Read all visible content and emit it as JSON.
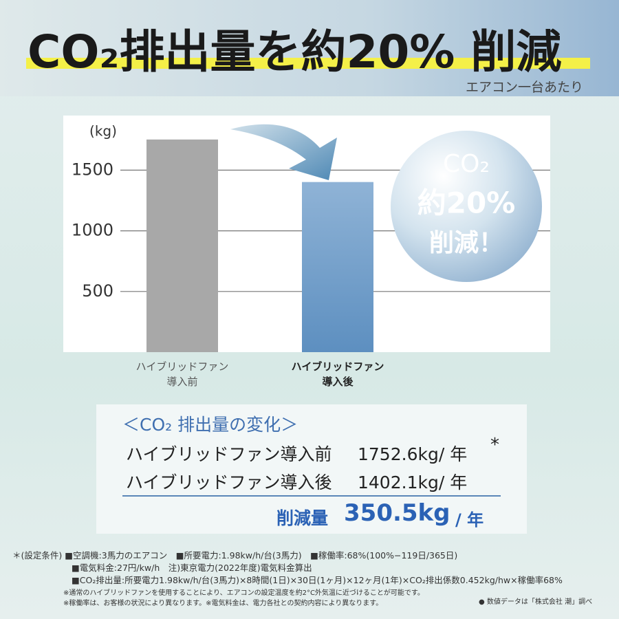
{
  "header": {
    "title": "CO₂排出量を約20% 削減",
    "subtitle": "エアコン一台あたり"
  },
  "chart_data": {
    "type": "bar",
    "y_label": "(kg)",
    "categories": [
      "ハイブリッドファン\n導入前",
      "ハイブリッドファン\n導入後"
    ],
    "values": [
      1752.6,
      1402.1
    ],
    "colors": [
      "#a8a8a8",
      "#6f9fcc"
    ],
    "ylim": [
      0,
      1950
    ],
    "yticks": [
      500,
      1000,
      1500
    ],
    "grid": true,
    "annotation": {
      "line1": "CO₂",
      "line2": "約20%",
      "line3": "削減！"
    }
  },
  "summary": {
    "heading": "＜CO₂ 排出量の変化＞",
    "rows": [
      {
        "label": "ハイブリッドファン導入前",
        "value": "1752.6kg/ 年",
        "mark": "*"
      },
      {
        "label": "ハイブリッドファン導入後",
        "value": "1402.1kg/ 年"
      }
    ],
    "reduction_label": "削減量",
    "reduction_value": "350.5kg",
    "reduction_unit": "/ 年"
  },
  "notes": {
    "lines": [
      "＊(設定条件) ■空調機:3馬力のエアコン　■所要電力:1.98kw/h/台(3馬力)　■稼働率:68%(100%−119日/365日)",
      "■電気料金:27円/kw/h　注)東京電力(2022年度)電気料金算出",
      "■CO₂排出量:所要電力1.98kw/h/台(3馬力)×8時間(1日)×30日(1ヶ月)×12ヶ月(1年)×CO₂排出係数0.452kg/hw×稼働率68%",
      "※通常のハイブリッドファンを使用することにより、エアコンの設定温度を約2°C外気温に近づけることが可能です。",
      "※稼働率は、お客様の状況により異なります。※電気料金は、電力各社との契約内容により異なります。"
    ],
    "source": "● 数値データは「株式会社 潮」調べ"
  }
}
